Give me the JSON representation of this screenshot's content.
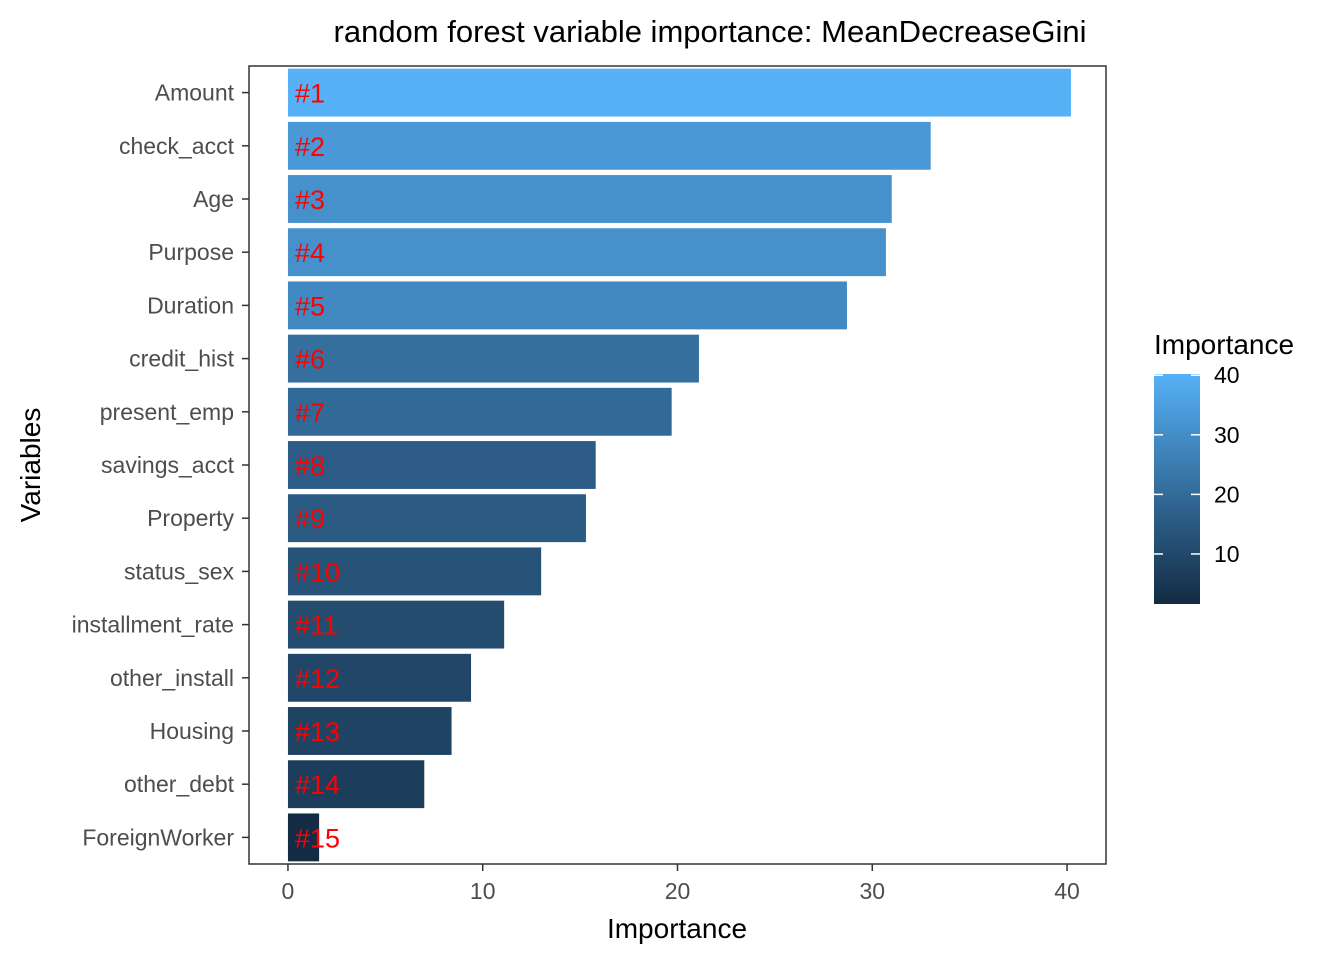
{
  "chart_data": {
    "type": "bar",
    "orientation": "horizontal",
    "title": "random forest variable importance: MeanDecreaseGini",
    "xlabel": "Importance",
    "ylabel": "Variables",
    "xlim": [
      -2,
      42
    ],
    "xticks": [
      0,
      10,
      20,
      30,
      40
    ],
    "grid": false,
    "categories": [
      "Amount",
      "check_acct",
      "Age",
      "Purpose",
      "Duration",
      "credit_hist",
      "present_emp",
      "savings_acct",
      "Property",
      "status_sex",
      "installment_rate",
      "other_install",
      "Housing",
      "other_debt",
      "ForeignWorker"
    ],
    "values": [
      40.2,
      33.0,
      31.0,
      30.7,
      28.7,
      21.1,
      19.7,
      15.8,
      15.3,
      13.0,
      11.1,
      9.4,
      8.4,
      7.0,
      1.6
    ],
    "data_labels": [
      "#1",
      "#2",
      "#3",
      "#4",
      "#5",
      "#6",
      "#7",
      "#8",
      "#9",
      "#10",
      "#11",
      "#12",
      "#13",
      "#14",
      "#15"
    ],
    "data_label_color": "#ff0000",
    "color_scale": {
      "low_color": "#132b43",
      "high_color": "#56b1f7",
      "domain": [
        1.6,
        40.2
      ]
    },
    "legend": {
      "title": "Importance",
      "position": "right",
      "ticks": [
        10,
        20,
        30,
        40
      ]
    }
  }
}
